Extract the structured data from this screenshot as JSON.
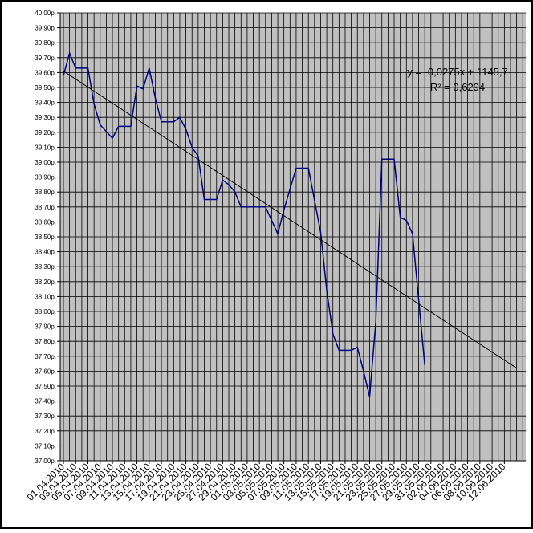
{
  "chart_data": {
    "type": "line",
    "x": [
      "01.04.2010",
      "02.04.2010",
      "03.04.2010",
      "05.04.2010",
      "06.04.2010",
      "07.04.2010",
      "09.04.2010",
      "10.04.2010",
      "12.04.2010",
      "13.04.2010",
      "14.04.2010",
      "15.04.2010",
      "16.04.2010",
      "17.04.2010",
      "19.04.2010",
      "20.04.2010",
      "21.04.2010",
      "22.04.2010",
      "23.04.2010",
      "24.04.2010",
      "26.04.2010",
      "27.04.2010",
      "28.04.2010",
      "29.04.2010",
      "30.04.2010",
      "04.05.2010",
      "06.05.2010",
      "07.05.2010",
      "09.05.2010",
      "11.05.2010",
      "13.05.2010",
      "14.05.2010",
      "15.05.2010",
      "16.05.2010",
      "18.05.2010",
      "19.05.2010",
      "20.05.2010",
      "21.05.2010",
      "22.05.2010",
      "23.05.2010",
      "25.05.2010",
      "26.05.2010",
      "27.05.2010",
      "28.05.2010",
      "30.05.2010"
    ],
    "series": [
      {
        "color": "#000080",
        "values": [
          39.58,
          39.73,
          39.63,
          39.63,
          39.39,
          39.25,
          39.16,
          39.24,
          39.24,
          39.51,
          39.49,
          39.63,
          39.43,
          39.27,
          39.27,
          39.3,
          39.22,
          39.1,
          39.04,
          38.75,
          38.75,
          38.88,
          38.85,
          38.8,
          38.7,
          38.7,
          38.52,
          38.68,
          38.96,
          38.96,
          38.53,
          38.14,
          37.85,
          37.74,
          37.74,
          37.76,
          37.6,
          37.43,
          37.93,
          39.02,
          39.02,
          38.63,
          38.61,
          38.52,
          37.64
        ]
      }
    ],
    "trendline": {
      "color": "#000000",
      "x": [
        "01.04.2010",
        "14.06.2010"
      ],
      "values": [
        39.61,
        37.62
      ],
      "equation": "y = -0,0275x + 1145,7",
      "r_squared": "R² = 0,6294"
    },
    "ylim": [
      37,
      40
    ],
    "yticks": [
      {
        "value": 37,
        "label": "37,00р."
      },
      {
        "value": 37.1,
        "label": "37,10р."
      },
      {
        "value": 37.2,
        "label": "37,20р."
      },
      {
        "value": 37.3,
        "label": "37,30р."
      },
      {
        "value": 37.4,
        "label": "37,40р."
      },
      {
        "value": 37.5,
        "label": "37,50р."
      },
      {
        "value": 37.6,
        "label": "37,60р."
      },
      {
        "value": 37.7,
        "label": "37,70р."
      },
      {
        "value": 37.8,
        "label": "37,80р."
      },
      {
        "value": 37.9,
        "label": "37,90р."
      },
      {
        "value": 38,
        "label": "38,00р."
      },
      {
        "value": 38.1,
        "label": "38,10р."
      },
      {
        "value": 38.2,
        "label": "38,20р."
      },
      {
        "value": 38.3,
        "label": "38,30р."
      },
      {
        "value": 38.4,
        "label": "38,40р."
      },
      {
        "value": 38.5,
        "label": "38,50р."
      },
      {
        "value": 38.6,
        "label": "38,60р."
      },
      {
        "value": 38.7,
        "label": "38,70р."
      },
      {
        "value": 38.8,
        "label": "38,80р."
      },
      {
        "value": 38.9,
        "label": "38,90р."
      },
      {
        "value": 39,
        "label": "39,00р."
      },
      {
        "value": 39.1,
        "label": "39,10р."
      },
      {
        "value": 39.2,
        "label": "39,20р."
      },
      {
        "value": 39.3,
        "label": "39,30р."
      },
      {
        "value": 39.4,
        "label": "39,40р."
      },
      {
        "value": 39.5,
        "label": "39,50р."
      },
      {
        "value": 39.6,
        "label": "39,60р."
      },
      {
        "value": 39.7,
        "label": "39,70р."
      },
      {
        "value": 39.8,
        "label": "39,80р."
      },
      {
        "value": 39.9,
        "label": "39,90р."
      },
      {
        "value": 40,
        "label": "40,00р."
      }
    ],
    "xticks": [
      "01.04.2010",
      "03.04.2010",
      "05.04.2010",
      "07.04.2010",
      "09.04.2010",
      "11.04.2010",
      "13.04.2010",
      "15.04.2010",
      "17.04.2010",
      "19.04.2010",
      "21.04.2010",
      "23.04.2010",
      "25.04.2010",
      "27.04.2010",
      "29.04.2010",
      "01.05.2010",
      "03.05.2010",
      "05.05.2010",
      "07.05.2010",
      "09.05.2010",
      "11.05.2010",
      "13.05.2010",
      "15.05.2010",
      "17.05.2010",
      "19.05.2010",
      "21.05.2010",
      "23.05.2010",
      "25.05.2010",
      "27.05.2010",
      "29.05.2010",
      "31.05.2010",
      "02.06.2010",
      "04.06.2010",
      "06.06.2010",
      "08.06.2010",
      "10.06.2010",
      "12.06.2010"
    ],
    "grid": true
  }
}
